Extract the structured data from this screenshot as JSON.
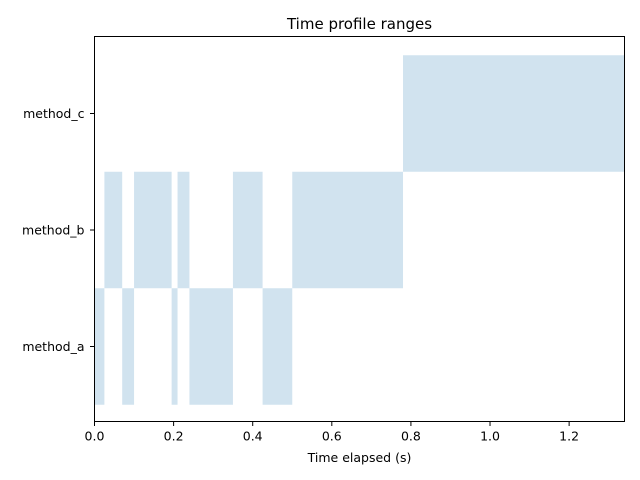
{
  "chart_data": {
    "type": "bar",
    "orientation": "horizontal-ranges",
    "title": "Time profile ranges",
    "xlabel": "Time elapsed (s)",
    "ylabel": "",
    "xlim": [
      0,
      1.34
    ],
    "x_ticks": [
      "0.0",
      "0.2",
      "0.4",
      "0.6",
      "0.8",
      "1.0",
      "1.2"
    ],
    "x_tick_values": [
      0.0,
      0.2,
      0.4,
      0.6,
      0.8,
      1.0,
      1.2
    ],
    "categories": [
      "method_a",
      "method_b",
      "method_c"
    ],
    "grid": false,
    "color": "#d1e3ef",
    "series": [
      {
        "category": "method_a",
        "ranges": [
          [
            0.0,
            0.025
          ],
          [
            0.07,
            0.1
          ],
          [
            0.195,
            0.21
          ],
          [
            0.24,
            0.35
          ],
          [
            0.425,
            0.5
          ]
        ]
      },
      {
        "category": "method_b",
        "ranges": [
          [
            0.025,
            0.07
          ],
          [
            0.1,
            0.195
          ],
          [
            0.21,
            0.24
          ],
          [
            0.35,
            0.425
          ],
          [
            0.5,
            0.78
          ]
        ]
      },
      {
        "category": "method_c",
        "ranges": [
          [
            0.78,
            1.34
          ]
        ]
      }
    ]
  }
}
